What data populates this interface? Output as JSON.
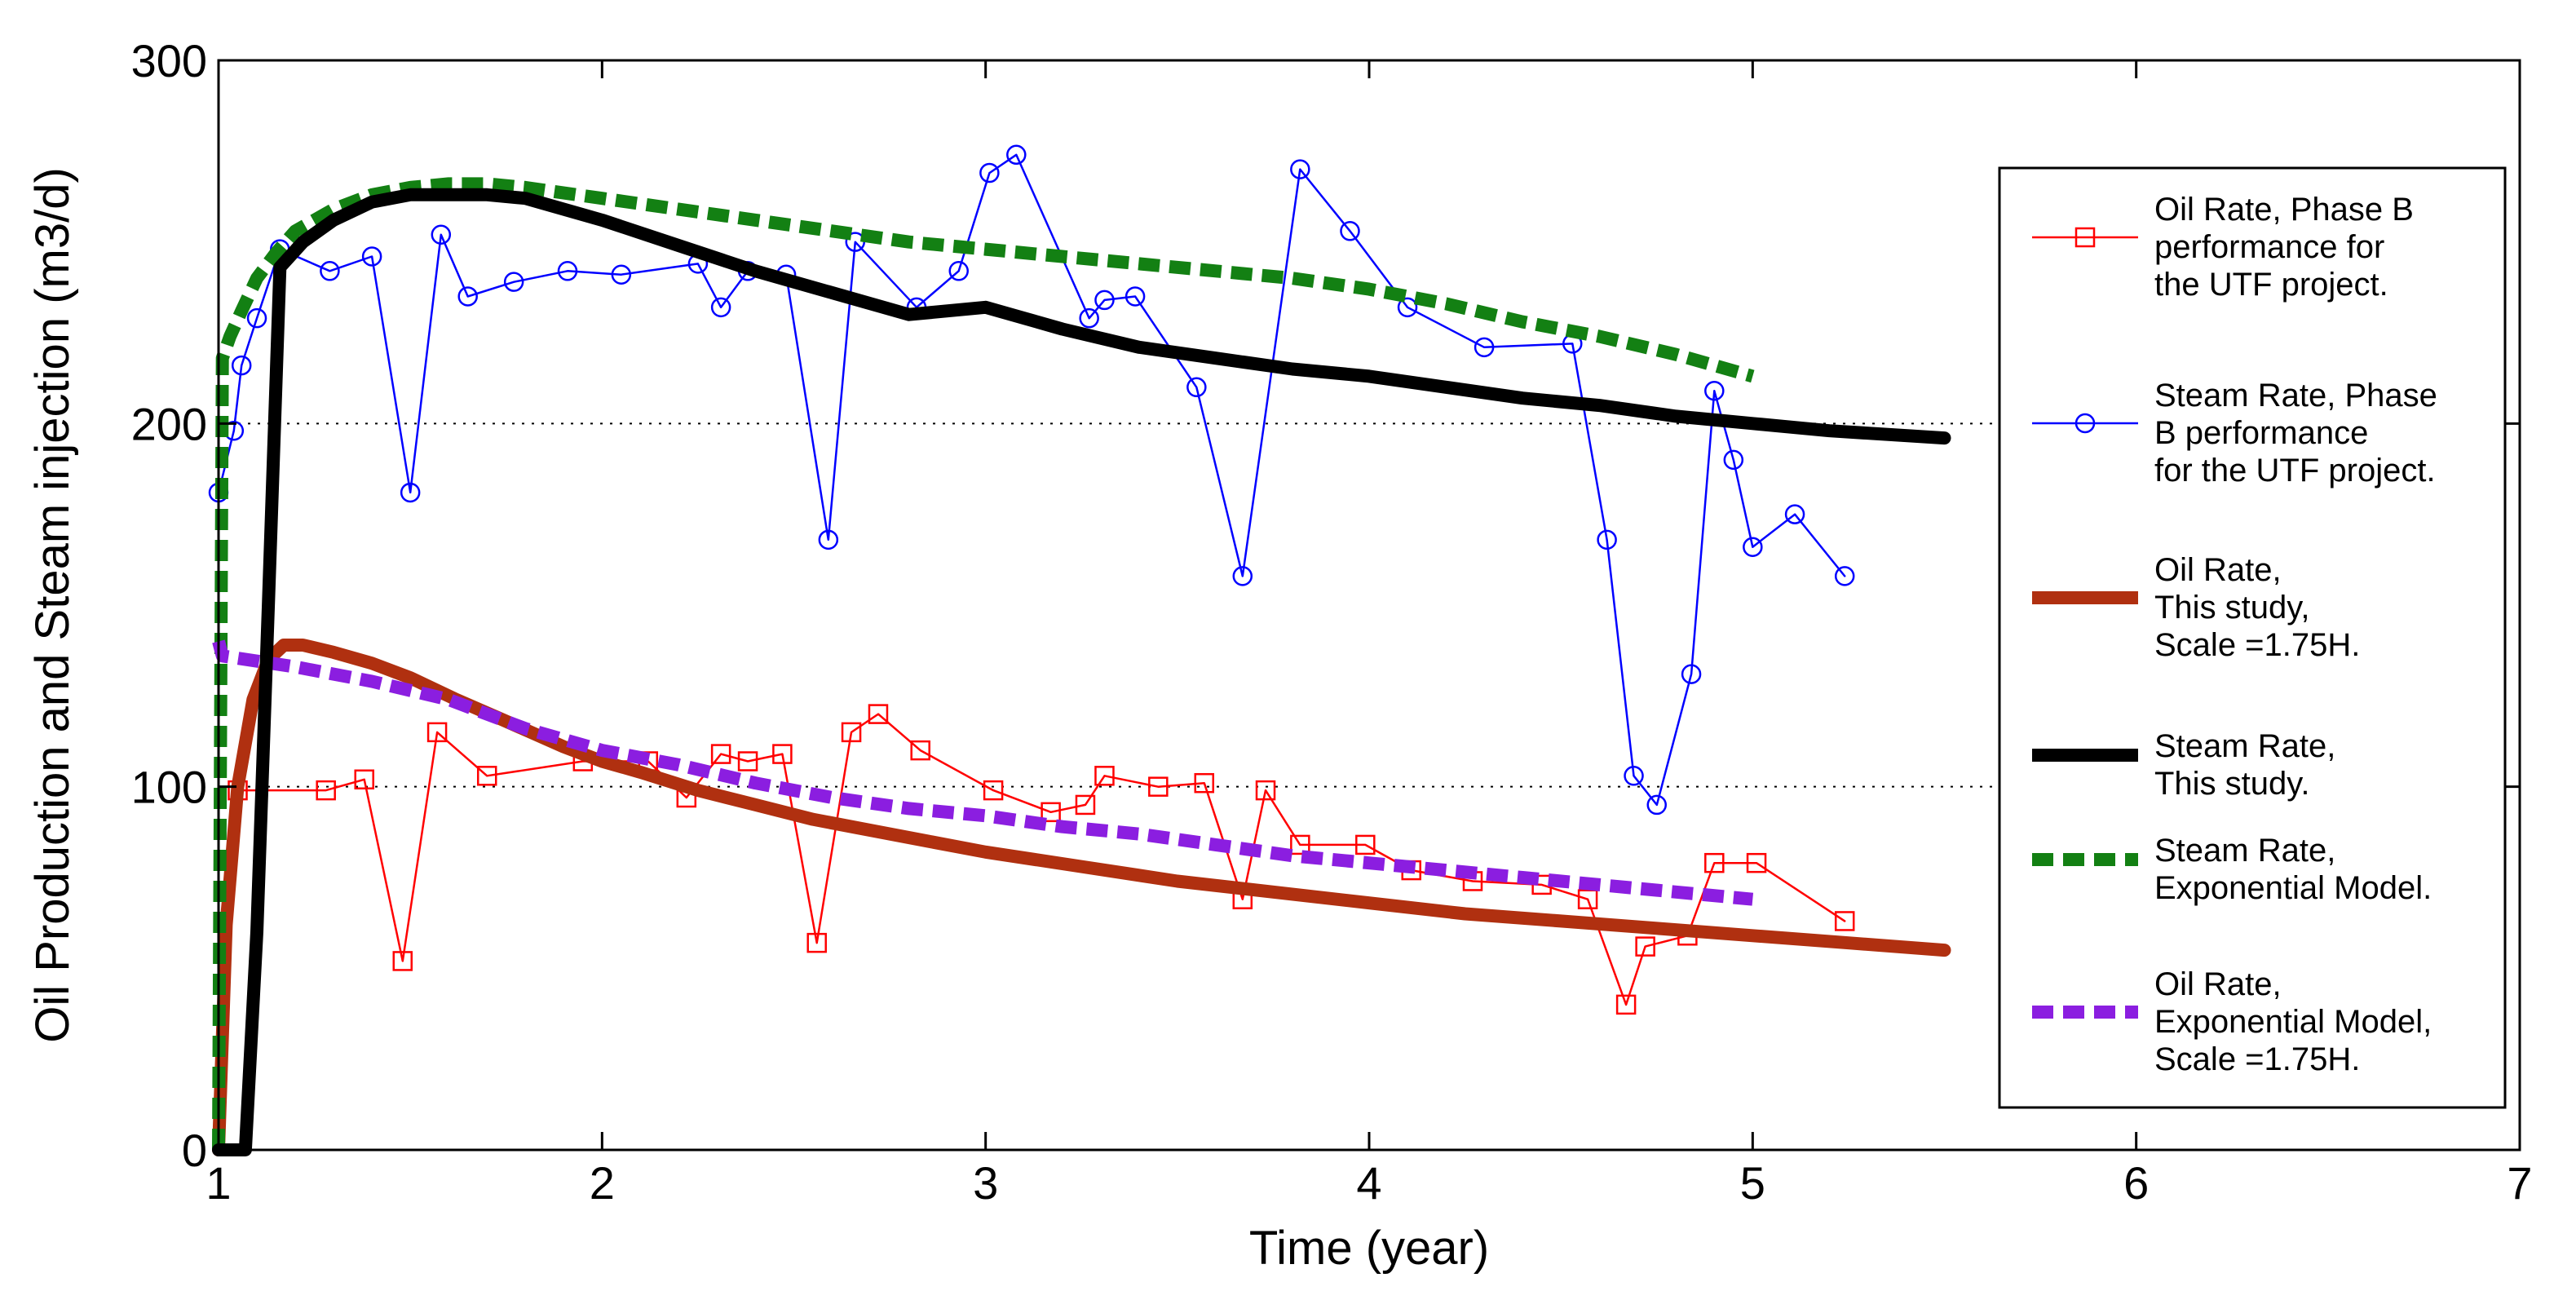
{
  "chart_data": {
    "type": "line",
    "title": "",
    "xlabel": "Time (year)",
    "ylabel": "Oil Production and Steam injection (m3/d)",
    "xlim": [
      1,
      7
    ],
    "ylim": [
      0,
      300
    ],
    "xticks": [
      1,
      2,
      3,
      4,
      5,
      6,
      7
    ],
    "yticks": [
      0,
      100,
      200,
      300
    ],
    "grid": "dotted horizontal at 100, 200, 300",
    "legend_position": "right",
    "series": [
      {
        "name": "Oil Rate, Phase B performance for the UTF project.",
        "legend_lines": [
          "Oil Rate, Phase B",
          "performance for",
          "the UTF project."
        ],
        "color": "#ff0000",
        "style": "line-square-markers",
        "x": [
          1.05,
          1.28,
          1.38,
          1.48,
          1.57,
          1.7,
          1.95,
          2.12,
          2.22,
          2.31,
          2.38,
          2.47,
          2.56,
          2.65,
          2.72,
          2.83,
          3.02,
          3.17,
          3.26,
          3.31,
          3.45,
          3.57,
          3.67,
          3.73,
          3.82,
          3.99,
          4.11,
          4.27,
          4.45,
          4.57,
          4.67,
          4.72,
          4.83,
          4.9,
          5.01,
          5.24
        ],
        "y": [
          99,
          99,
          102,
          52,
          115,
          103,
          107,
          107,
          97,
          109,
          107,
          109,
          57,
          115,
          120,
          110,
          99,
          93,
          95,
          103,
          100,
          101,
          69,
          99,
          84,
          84,
          77,
          74,
          73,
          69,
          40,
          56,
          59,
          79,
          79,
          63
        ]
      },
      {
        "name": "Steam Rate, Phase B performance for the UTF project.",
        "legend_lines": [
          "Steam Rate, Phase",
          "B performance",
          "for the UTF project."
        ],
        "color": "#0000ff",
        "style": "line-circle-markers",
        "x": [
          1.0,
          1.04,
          1.06,
          1.1,
          1.16,
          1.29,
          1.4,
          1.5,
          1.58,
          1.65,
          1.77,
          1.91,
          2.05,
          2.25,
          2.31,
          2.38,
          2.48,
          2.59,
          2.66,
          2.82,
          2.93,
          3.01,
          3.08,
          3.27,
          3.31,
          3.39,
          3.55,
          3.67,
          3.82,
          3.95,
          4.1,
          4.3,
          4.53,
          4.62,
          4.69,
          4.75,
          4.84,
          4.9,
          4.95,
          5.0,
          5.11,
          5.24
        ],
        "y": [
          181,
          198,
          216,
          229,
          248,
          242,
          246,
          181,
          252,
          235,
          239,
          242,
          241,
          244,
          232,
          242,
          241,
          168,
          250,
          232,
          242,
          269,
          274,
          229,
          234,
          235,
          210,
          158,
          270,
          253,
          232,
          221,
          222,
          168,
          103,
          95,
          131,
          209,
          190,
          166,
          175,
          158
        ]
      },
      {
        "name": "Oil Rate, This study, Scale =1.75H.",
        "legend_lines": [
          "Oil Rate,",
          "This study,",
          "Scale =1.75H."
        ],
        "color": "#b03010",
        "style": "thick-solid",
        "x": [
          1.0,
          1.02,
          1.05,
          1.09,
          1.13,
          1.17,
          1.22,
          1.3,
          1.4,
          1.5,
          1.62,
          1.75,
          1.9,
          2.0,
          2.1,
          2.25,
          2.4,
          2.55,
          2.7,
          2.85,
          3.0,
          3.25,
          3.5,
          3.75,
          4.0,
          4.25,
          4.5,
          4.75,
          5.0,
          5.25,
          5.5
        ],
        "y": [
          0,
          62,
          100,
          124,
          135,
          139,
          139,
          137,
          134,
          130,
          124,
          118,
          111,
          107,
          104,
          99,
          95,
          91,
          88,
          85,
          82,
          78,
          74,
          71,
          68,
          65,
          63,
          61,
          59,
          57,
          55
        ]
      },
      {
        "name": "Steam Rate, This study.",
        "legend_lines": [
          "Steam Rate,",
          "This study."
        ],
        "color": "#000000",
        "style": "thick-solid",
        "x": [
          1.0,
          1.07,
          1.1,
          1.13,
          1.16,
          1.22,
          1.3,
          1.4,
          1.5,
          1.6,
          1.7,
          1.8,
          2.0,
          2.2,
          2.4,
          2.6,
          2.8,
          3.0,
          3.2,
          3.4,
          3.6,
          3.8,
          4.0,
          4.2,
          4.4,
          4.6,
          4.8,
          5.0,
          5.2,
          5.5
        ],
        "y": [
          0,
          0,
          60,
          150,
          243,
          250,
          256,
          261,
          263,
          263,
          263,
          262,
          256,
          249,
          242,
          236,
          230,
          232,
          226,
          221,
          218,
          215,
          213,
          210,
          207,
          205,
          202,
          200,
          198,
          196
        ]
      },
      {
        "name": "Steam Rate, Exponential Model.",
        "legend_lines": [
          "Steam Rate,",
          "Exponential Model."
        ],
        "color": "#138013",
        "style": "thick-dashed",
        "x": [
          1.0,
          1.01,
          1.03,
          1.06,
          1.1,
          1.15,
          1.2,
          1.3,
          1.4,
          1.5,
          1.6,
          1.7,
          1.8,
          2.0,
          2.2,
          2.4,
          2.6,
          2.8,
          3.0,
          3.2,
          3.4,
          3.6,
          3.8,
          4.0,
          4.2,
          4.4,
          4.6,
          4.8,
          5.0
        ],
        "y": [
          0,
          218,
          224,
          231,
          240,
          247,
          253,
          259,
          263,
          265,
          266,
          266,
          265,
          262,
          259,
          256,
          253,
          250,
          248,
          246,
          244,
          242,
          240,
          237,
          233,
          228,
          224,
          219,
          213
        ]
      },
      {
        "name": "Oil Rate, Exponential Model, Scale =1.75H.",
        "legend_lines": [
          "Oil Rate,",
          "Exponential Model,",
          "Scale =1.75H."
        ],
        "color": "#8b1ee0",
        "style": "thick-dashed",
        "x": [
          1.0,
          1.01,
          1.2,
          1.4,
          1.6,
          1.8,
          2.0,
          2.2,
          2.4,
          2.6,
          2.8,
          3.0,
          3.2,
          3.4,
          3.6,
          3.8,
          4.0,
          4.2,
          4.4,
          4.6,
          4.8,
          5.0
        ],
        "y": [
          140,
          136,
          133,
          129,
          124,
          116,
          110,
          106,
          101,
          97,
          94,
          92,
          89,
          87,
          84,
          81,
          79,
          77,
          75,
          73,
          71,
          69
        ]
      }
    ]
  }
}
